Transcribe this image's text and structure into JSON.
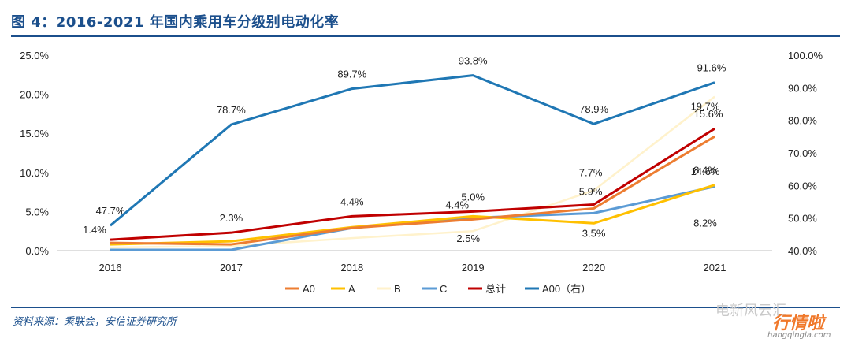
{
  "header": {
    "title": "图 4：2016-2021 年国内乘用车分级别电动化率"
  },
  "source": {
    "text": "资料来源：乘联会，安信证券研究所"
  },
  "watermark": {
    "text": "电新风云汇",
    "brand": "行情啦",
    "url": "hangqingla.com"
  },
  "colors": {
    "accent": "#1b4f8c"
  },
  "chart_data": {
    "type": "line",
    "categories": [
      "2016",
      "2017",
      "2018",
      "2019",
      "2020",
      "2021"
    ],
    "ylim_left": [
      0,
      25
    ],
    "ylim_right": [
      40,
      100
    ],
    "y_ticks_left": [
      "0.0%",
      "5.0%",
      "10.0%",
      "15.0%",
      "20.0%",
      "25.0%"
    ],
    "y_ticks_right": [
      "40.0%",
      "50.0%",
      "60.0%",
      "70.0%",
      "80.0%",
      "90.0%",
      "100.0%"
    ],
    "grid": false,
    "legend_position": "bottom",
    "series": [
      {
        "name": "A0",
        "axis": "left",
        "color": "#ed7d31",
        "values": [
          1.0,
          0.8,
          2.9,
          4.0,
          5.4,
          14.6
        ]
      },
      {
        "name": "A",
        "axis": "left",
        "color": "#ffc000",
        "values": [
          0.8,
          1.2,
          3.0,
          4.4,
          3.5,
          8.4
        ]
      },
      {
        "name": "B",
        "axis": "left",
        "color": "#fff2cc",
        "values": [
          0.4,
          0.6,
          1.6,
          2.5,
          7.7,
          19.7
        ]
      },
      {
        "name": "C",
        "axis": "left",
        "color": "#5b9bd5",
        "values": [
          0.1,
          0.1,
          2.9,
          4.2,
          4.8,
          8.2
        ]
      },
      {
        "name": "总计",
        "axis": "left",
        "color": "#c00000",
        "values": [
          1.4,
          2.3,
          4.4,
          5.0,
          5.9,
          15.6
        ]
      },
      {
        "name": "A00（右）",
        "axis": "right",
        "color": "#1f77b4",
        "values": [
          47.7,
          78.7,
          89.7,
          93.8,
          78.9,
          91.6
        ]
      }
    ],
    "data_labels": [
      {
        "text": "47.7%",
        "series": "A00（右）",
        "index": 0
      },
      {
        "text": "78.7%",
        "series": "A00（右）",
        "index": 1
      },
      {
        "text": "89.7%",
        "series": "A00（右）",
        "index": 2
      },
      {
        "text": "93.8%",
        "series": "A00（右）",
        "index": 3
      },
      {
        "text": "78.9%",
        "series": "A00（右）",
        "index": 4
      },
      {
        "text": "91.6%",
        "series": "A00（右）",
        "index": 5
      },
      {
        "text": "1.4%",
        "series": "总计",
        "index": 0
      },
      {
        "text": "2.3%",
        "series": "总计",
        "index": 1
      },
      {
        "text": "4.4%",
        "series": "总计",
        "index": 2
      },
      {
        "text": "5.0%",
        "series": "总计",
        "index": 3
      },
      {
        "text": "5.9%",
        "series": "总计",
        "index": 4
      },
      {
        "text": "15.6%",
        "series": "总计",
        "index": 5
      },
      {
        "text": "4.4%",
        "series": "A",
        "index": 3
      },
      {
        "text": "2.5%",
        "series": "B",
        "index": 3
      },
      {
        "text": "3.5%",
        "series": "A",
        "index": 4
      },
      {
        "text": "7.7%",
        "series": "B",
        "index": 4
      },
      {
        "text": "19.7%",
        "series": "B",
        "index": 5
      },
      {
        "text": "14.6%",
        "series": "A0",
        "index": 5
      },
      {
        "text": "8.4%",
        "series": "A",
        "index": 5
      },
      {
        "text": "8.2%",
        "series": "C",
        "index": 5
      }
    ]
  }
}
